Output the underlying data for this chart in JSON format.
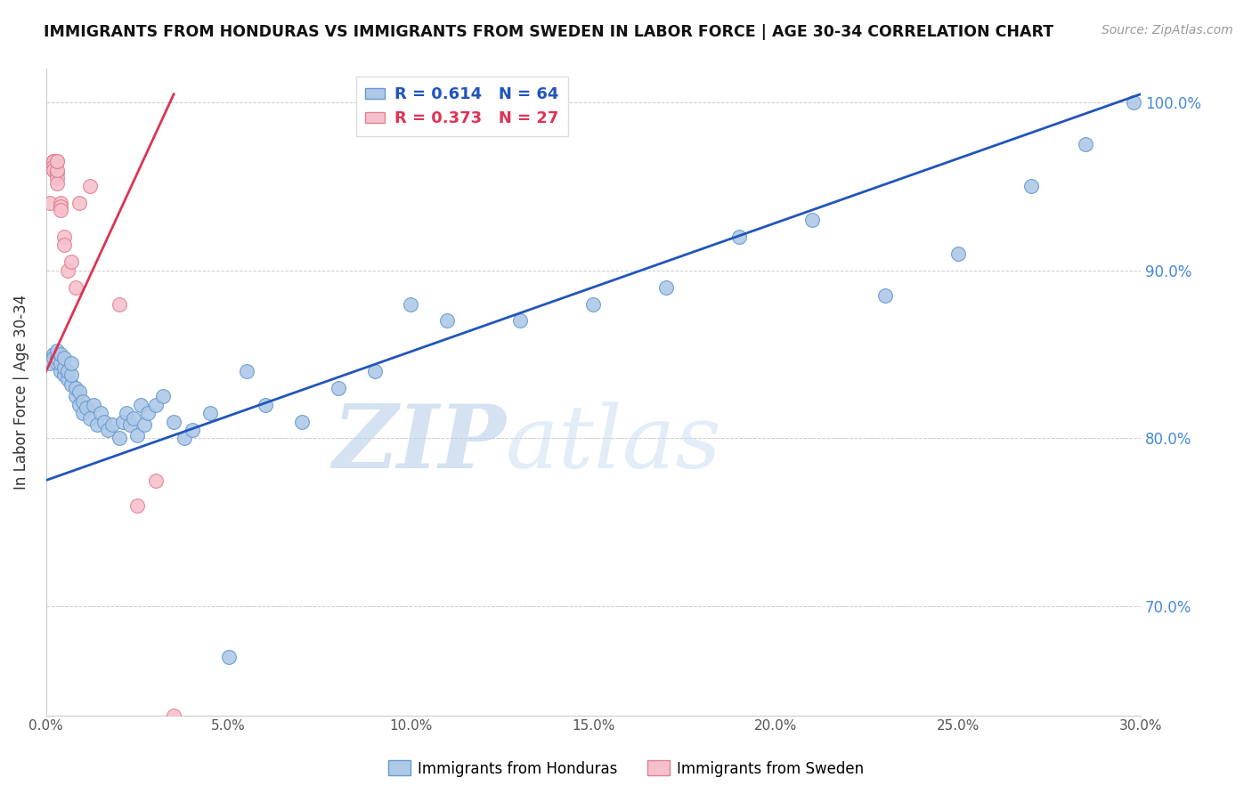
{
  "title": "IMMIGRANTS FROM HONDURAS VS IMMIGRANTS FROM SWEDEN IN LABOR FORCE | AGE 30-34 CORRELATION CHART",
  "source": "Source: ZipAtlas.com",
  "xlabel": "",
  "ylabel": "In Labor Force | Age 30-34",
  "xlim": [
    0.0,
    0.3
  ],
  "ylim": [
    0.635,
    1.02
  ],
  "xticks": [
    0.0,
    0.05,
    0.1,
    0.15,
    0.2,
    0.25,
    0.3
  ],
  "xtick_labels": [
    "0.0%",
    "5.0%",
    "10.0%",
    "15.0%",
    "20.0%",
    "25.0%",
    "30.0%"
  ],
  "ytick_right": [
    0.7,
    0.8,
    0.9,
    1.0
  ],
  "ytick_right_labels": [
    "70.0%",
    "80.0%",
    "90.0%",
    "100.0%"
  ],
  "blue_color": "#aec9e8",
  "blue_edge": "#6699cc",
  "pink_color": "#f5c0cc",
  "pink_edge": "#e08090",
  "trend_blue": "#2255bb",
  "trend_pink": "#dd3355",
  "R_blue": 0.614,
  "N_blue": 64,
  "R_pink": 0.373,
  "N_pink": 27,
  "legend_label_blue": "Immigrants from Honduras",
  "legend_label_pink": "Immigrants from Sweden",
  "watermark": "ZIPatlas",
  "blue_x": [
    0.001,
    0.002,
    0.002,
    0.003,
    0.003,
    0.003,
    0.004,
    0.004,
    0.004,
    0.005,
    0.005,
    0.005,
    0.006,
    0.006,
    0.007,
    0.007,
    0.007,
    0.008,
    0.008,
    0.009,
    0.009,
    0.01,
    0.01,
    0.011,
    0.012,
    0.013,
    0.014,
    0.015,
    0.016,
    0.017,
    0.018,
    0.02,
    0.021,
    0.022,
    0.023,
    0.024,
    0.025,
    0.026,
    0.027,
    0.028,
    0.03,
    0.032,
    0.035,
    0.038,
    0.04,
    0.045,
    0.05,
    0.055,
    0.06,
    0.07,
    0.08,
    0.09,
    0.1,
    0.11,
    0.13,
    0.15,
    0.17,
    0.19,
    0.21,
    0.23,
    0.25,
    0.27,
    0.285,
    0.298
  ],
  "blue_y": [
    0.845,
    0.85,
    0.848,
    0.845,
    0.848,
    0.852,
    0.84,
    0.845,
    0.85,
    0.838,
    0.842,
    0.848,
    0.835,
    0.84,
    0.832,
    0.838,
    0.845,
    0.825,
    0.83,
    0.82,
    0.828,
    0.815,
    0.822,
    0.818,
    0.812,
    0.82,
    0.808,
    0.815,
    0.81,
    0.805,
    0.808,
    0.8,
    0.81,
    0.815,
    0.808,
    0.812,
    0.802,
    0.82,
    0.808,
    0.815,
    0.82,
    0.825,
    0.81,
    0.8,
    0.805,
    0.815,
    0.67,
    0.84,
    0.82,
    0.81,
    0.83,
    0.84,
    0.88,
    0.87,
    0.87,
    0.88,
    0.89,
    0.92,
    0.93,
    0.885,
    0.91,
    0.95,
    0.975,
    1.0
  ],
  "pink_x": [
    0.001,
    0.002,
    0.002,
    0.002,
    0.002,
    0.002,
    0.002,
    0.003,
    0.003,
    0.003,
    0.003,
    0.003,
    0.003,
    0.004,
    0.004,
    0.004,
    0.005,
    0.005,
    0.006,
    0.007,
    0.008,
    0.009,
    0.012,
    0.02,
    0.025,
    0.03,
    0.035
  ],
  "pink_y": [
    0.94,
    0.96,
    0.965,
    0.965,
    0.965,
    0.962,
    0.96,
    0.958,
    0.955,
    0.952,
    0.96,
    0.965,
    0.965,
    0.94,
    0.938,
    0.936,
    0.92,
    0.915,
    0.9,
    0.905,
    0.89,
    0.94,
    0.95,
    0.88,
    0.76,
    0.775,
    0.635
  ],
  "blue_trend_x": [
    0.0,
    0.3
  ],
  "blue_trend_y": [
    0.775,
    1.005
  ],
  "pink_trend_x": [
    0.0,
    0.035
  ],
  "pink_trend_y": [
    0.84,
    1.005
  ]
}
